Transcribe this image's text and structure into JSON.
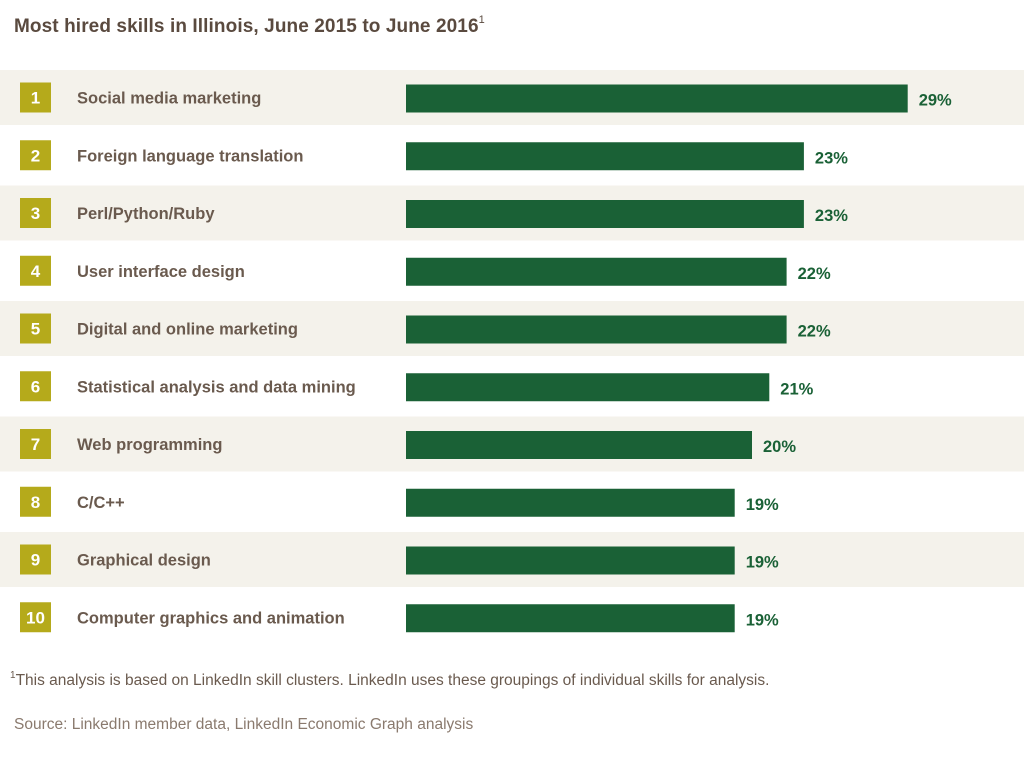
{
  "header": {
    "title": "Most hired skills in Illinois, June 2015 to June 2016",
    "title_footnote_mark": "1"
  },
  "chart_data": {
    "type": "bar",
    "orientation": "horizontal",
    "ranks": [
      "1",
      "2",
      "3",
      "4",
      "5",
      "6",
      "7",
      "8",
      "9",
      "10"
    ],
    "categories": [
      "Social media marketing",
      "Foreign language translation",
      "Perl/Python/Ruby",
      "User interface design",
      "Digital and online marketing",
      "Statistical analysis and data mining",
      "Web programming",
      "C/C++",
      "Graphical design",
      "Computer graphics and animation"
    ],
    "values": [
      29,
      23,
      23,
      22,
      22,
      21,
      20,
      19,
      19,
      19
    ],
    "value_labels": [
      "29%",
      "23%",
      "23%",
      "22%",
      "22%",
      "21%",
      "20%",
      "19%",
      "19%",
      "19%"
    ],
    "value_unit": "%",
    "title": "Most hired skills in Illinois, June 2015 to June 2016",
    "xlabel": "",
    "ylabel": "",
    "grid": false,
    "legend": "none",
    "colors": {
      "bar": "#1a6136",
      "value_label": "#1a6136",
      "rank_badge": "#b5aa1b",
      "rank_text": "#ffffff",
      "row_band": "#f4f2eb",
      "category_text": "#6a5a4e"
    }
  },
  "footer": {
    "footnote_mark": "1",
    "footnote": "This analysis is based on LinkedIn skill clusters. LinkedIn uses these groupings of individual skills for analysis.",
    "source": "Source: LinkedIn member data, LinkedIn Economic Graph analysis"
  }
}
